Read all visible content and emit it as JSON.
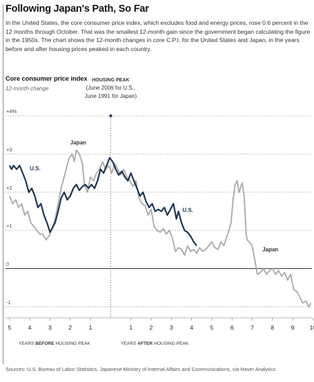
{
  "title": "Following Japan's Path, So Far",
  "description": "In the United States, the core consumer price index, which excludes food and energy prices, rose 0.6 percent in the 12 months through October. That was the smallest 12-month gain since the government began calculating the figure in the 1950s. The chart shows the 12-month changes in core C.P.I. for the United States and Japan, in the years before and after housing prices peaked in each country.",
  "sources": "Sources: U.S. Bureau of Labor Statistics, Japanese Ministry of Internal Affairs and Communications, via Haver Analytics",
  "colors": {
    "us_line": "#1d3550",
    "japan_line": "#a8a8a8",
    "grid": "#999999",
    "peak_marker": "#2a3f57"
  },
  "chart_data": {
    "type": "line",
    "ylabel": "Core consumer price index",
    "ylabel_sub": "12-month change",
    "ylim": [
      -1.2,
      4
    ],
    "xlim": [
      -5.2,
      9.95
    ],
    "y_ticks": [
      {
        "value": 4,
        "label": "+4%"
      },
      {
        "value": 3,
        "label": "+3"
      },
      {
        "value": 2,
        "label": "+2"
      },
      {
        "value": 1,
        "label": "+1"
      },
      {
        "value": 0,
        "label": "0"
      },
      {
        "value": -1,
        "label": "-1"
      }
    ],
    "x_ticks": [
      {
        "value": -5,
        "label": "5"
      },
      {
        "value": -4,
        "label": "4"
      },
      {
        "value": -3,
        "label": "3"
      },
      {
        "value": -2,
        "label": "2"
      },
      {
        "value": -1,
        "label": "1"
      },
      {
        "value": 1,
        "label": "1"
      },
      {
        "value": 2,
        "label": "2"
      },
      {
        "value": 3,
        "label": "3"
      },
      {
        "value": 4,
        "label": "4"
      },
      {
        "value": 5,
        "label": "5"
      },
      {
        "value": 6,
        "label": "6"
      },
      {
        "value": 7,
        "label": "7"
      },
      {
        "value": 8,
        "label": "8"
      },
      {
        "value": 9,
        "label": "9"
      },
      {
        "value": 10,
        "label": "10"
      }
    ],
    "x_caption_before": {
      "pre": "YEARS ",
      "bold": "BEFORE",
      "post": " HOUSING PEAK"
    },
    "x_caption_after": {
      "pre": "YEARS ",
      "bold": "AFTER",
      "post": " HOUSING PEAK"
    },
    "housing_peak": {
      "x": 0,
      "y": 4,
      "label": [
        "HOUSING PEAK",
        "(June 2006 for U.S.,",
        "June 1991 for Japan)"
      ]
    },
    "series": [
      {
        "name": "U.S.",
        "x": [
          -5.0,
          -4.9,
          -4.8,
          -4.65,
          -4.5,
          -4.35,
          -4.2,
          -4.05,
          -3.9,
          -3.75,
          -3.6,
          -3.45,
          -3.3,
          -3.15,
          -3.0,
          -2.9,
          -2.75,
          -2.6,
          -2.45,
          -2.3,
          -2.15,
          -2.0,
          -1.85,
          -1.7,
          -1.55,
          -1.4,
          -1.25,
          -1.1,
          -0.95,
          -0.8,
          -0.65,
          -0.5,
          -0.35,
          -0.2,
          -0.05,
          0.1,
          0.25,
          0.4,
          0.55,
          0.7,
          0.85,
          1.0,
          1.15,
          1.3,
          1.45,
          1.6,
          1.75,
          1.9,
          2.05,
          2.2,
          2.35,
          2.5,
          2.65,
          2.8,
          2.95,
          3.1,
          3.25,
          3.35,
          3.5,
          3.65,
          3.8,
          3.95,
          4.1,
          4.25
        ],
        "y": [
          2.7,
          2.6,
          2.7,
          2.6,
          2.7,
          2.5,
          2.3,
          2.0,
          2.1,
          1.9,
          1.6,
          1.7,
          1.4,
          1.2,
          0.95,
          1.05,
          1.2,
          1.5,
          1.85,
          2.0,
          1.8,
          1.9,
          2.1,
          2.2,
          2.05,
          2.15,
          2.2,
          2.1,
          2.2,
          2.1,
          2.3,
          2.6,
          2.5,
          2.7,
          2.9,
          2.8,
          2.6,
          2.45,
          2.55,
          2.4,
          2.3,
          2.5,
          2.3,
          2.1,
          1.9,
          2.0,
          1.75,
          1.6,
          1.7,
          1.5,
          1.55,
          1.5,
          1.6,
          1.4,
          1.55,
          1.7,
          1.3,
          1.5,
          1.2,
          1.0,
          0.95,
          0.85,
          0.7,
          0.6
        ],
        "labels": [
          {
            "text": "U.S.",
            "x": -4.0,
            "y": 2.57
          },
          {
            "text": "U.S.",
            "x": 3.55,
            "y": 1.48
          }
        ]
      },
      {
        "name": "Japan",
        "x": [
          -5.0,
          -4.85,
          -4.7,
          -4.55,
          -4.4,
          -4.25,
          -4.1,
          -3.95,
          -3.8,
          -3.65,
          -3.5,
          -3.35,
          -3.2,
          -3.05,
          -2.9,
          -2.75,
          -2.6,
          -2.45,
          -2.3,
          -2.2,
          -2.05,
          -1.9,
          -1.8,
          -1.7,
          -1.55,
          -1.4,
          -1.3,
          -1.15,
          -1.0,
          -0.85,
          -0.7,
          -0.55,
          -0.4,
          -0.25,
          -0.1,
          0.05,
          0.2,
          0.35,
          0.5,
          0.65,
          0.8,
          0.95,
          1.1,
          1.25,
          1.4,
          1.55,
          1.7,
          1.85,
          2.0,
          2.15,
          2.3,
          2.45,
          2.6,
          2.75,
          2.9,
          3.05,
          3.2,
          3.35,
          3.5,
          3.65,
          3.8,
          3.95,
          4.1,
          4.25,
          4.4,
          4.55,
          4.7,
          4.85,
          5.0,
          5.15,
          5.3,
          5.45,
          5.6,
          5.75,
          5.85,
          5.95,
          6.05,
          6.15,
          6.25,
          6.35,
          6.5,
          6.6,
          6.7,
          6.75,
          6.85,
          7.0,
          7.1,
          7.25,
          7.4,
          7.55,
          7.7,
          7.85,
          8.0,
          8.15,
          8.3,
          8.45,
          8.6,
          8.75,
          8.9,
          9.05,
          9.2,
          9.35,
          9.5,
          9.65,
          9.8,
          9.9
        ],
        "y": [
          1.9,
          1.7,
          1.8,
          1.6,
          1.7,
          1.4,
          1.5,
          1.2,
          1.1,
          1.0,
          0.9,
          0.9,
          0.75,
          0.85,
          1.05,
          1.3,
          1.7,
          2.1,
          2.4,
          2.6,
          2.9,
          3.0,
          2.8,
          3.1,
          3.0,
          2.75,
          2.2,
          2.0,
          2.4,
          2.3,
          2.5,
          2.6,
          2.8,
          2.6,
          2.7,
          2.5,
          2.75,
          2.6,
          2.45,
          2.6,
          2.4,
          2.3,
          2.15,
          2.3,
          1.85,
          1.7,
          1.65,
          1.4,
          1.55,
          1.1,
          1.0,
          0.95,
          1.05,
          0.9,
          1.0,
          0.8,
          0.45,
          0.55,
          0.5,
          0.35,
          0.6,
          0.45,
          0.5,
          0.4,
          0.55,
          0.45,
          0.5,
          0.6,
          0.7,
          0.55,
          0.5,
          0.7,
          0.6,
          0.85,
          1.0,
          1.2,
          1.8,
          2.2,
          2.3,
          2.0,
          2.25,
          1.9,
          0.9,
          0.75,
          0.7,
          0.6,
          0.3,
          -0.15,
          -0.1,
          0.0,
          -0.15,
          -0.05,
          0.0,
          -0.15,
          -0.05,
          -0.2,
          -0.1,
          -0.3,
          -0.15,
          -0.55,
          -0.6,
          -0.75,
          -0.9,
          -0.85,
          -1.0,
          -0.9
        ],
        "labels": [
          {
            "text": "Japan",
            "x": -2.0,
            "y": 3.25
          },
          {
            "text": "Japan",
            "x": 7.5,
            "y": 0.45
          }
        ]
      }
    ]
  }
}
